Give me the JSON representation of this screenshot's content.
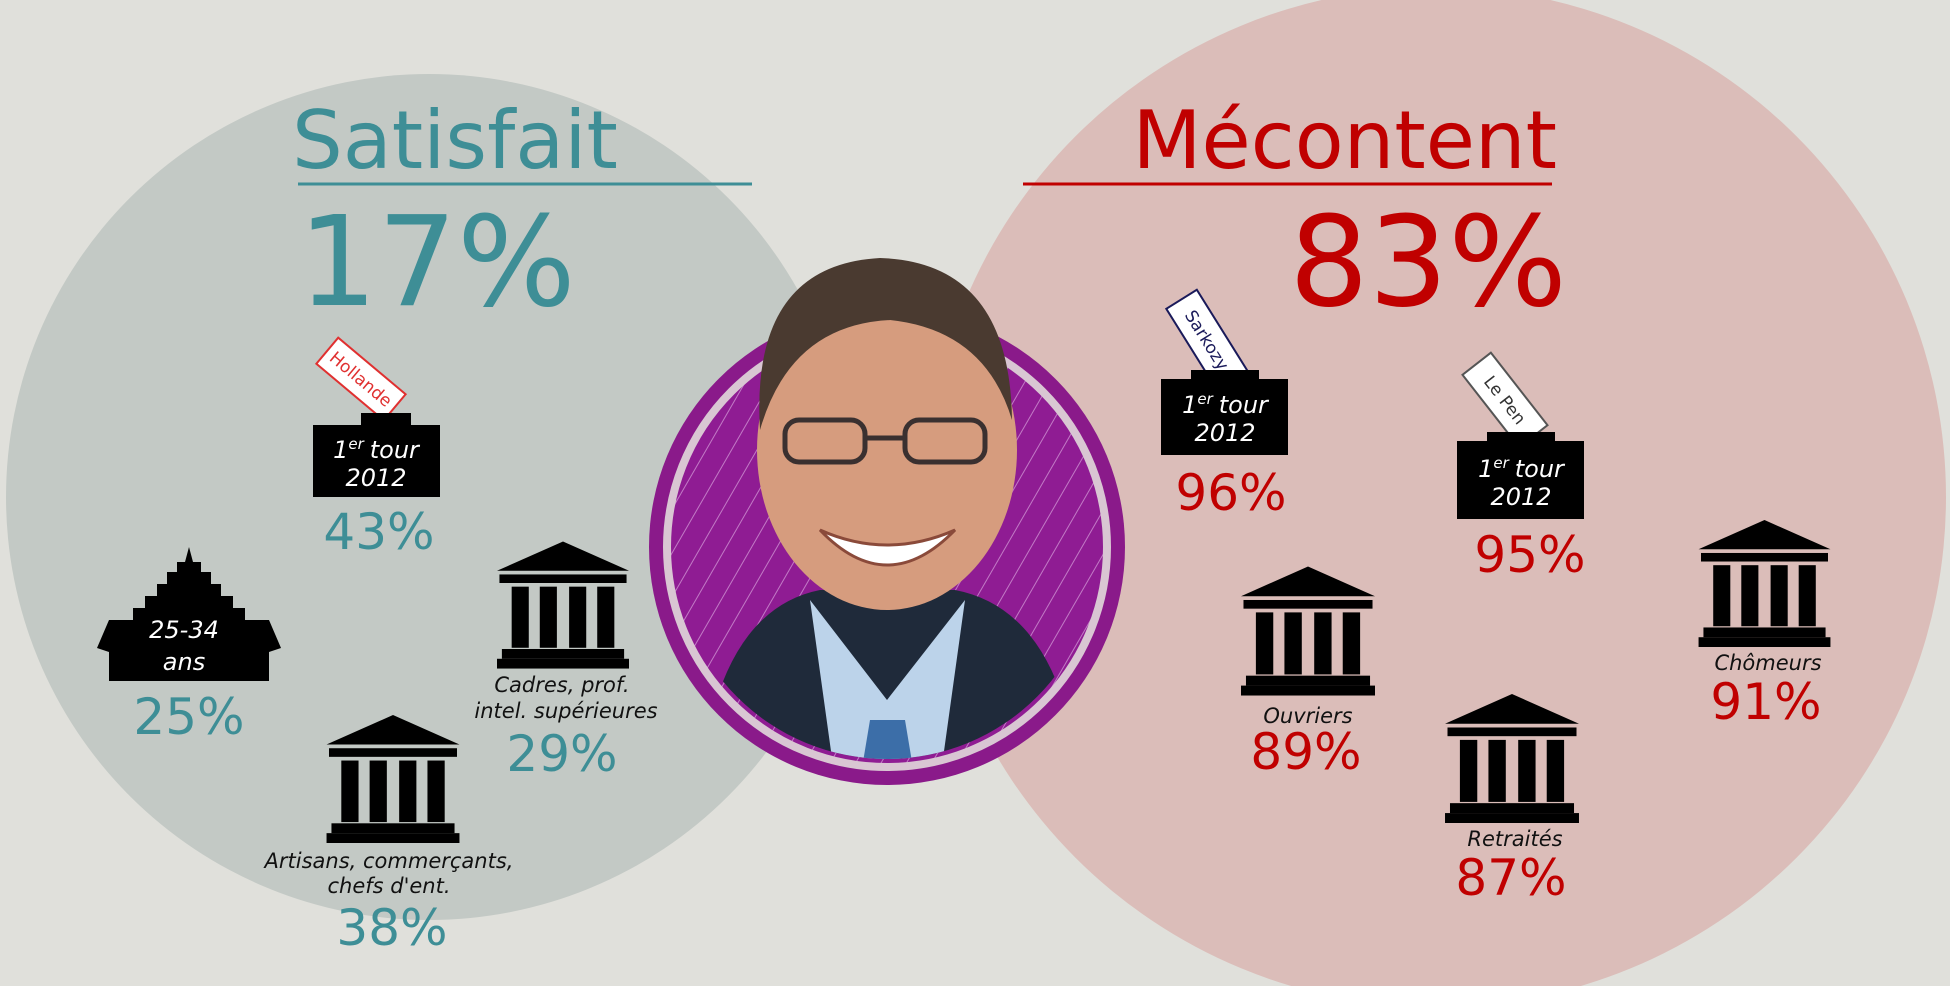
{
  "satisfait": {
    "title": "Satisfait",
    "total": "17%",
    "vote": {
      "ballot": "Hollande",
      "urn": {
        "num": "1",
        "sup": "er",
        "word": "tour",
        "year": "2012"
      },
      "value": "43%"
    },
    "age": {
      "lines": [
        "25-34",
        "ans"
      ],
      "value": "25%"
    },
    "cadres": {
      "lines": [
        "Cadres, prof.",
        "intel. supérieures"
      ],
      "value": "29%"
    },
    "artisans": {
      "lines": [
        "Artisans, commerçants,",
        "chefs d'ent."
      ],
      "value": "38%"
    }
  },
  "mecontent": {
    "title": "Mécontent",
    "total": "83%",
    "sarkozy": {
      "ballot": "Sarkozy",
      "urn": {
        "num": "1",
        "sup": "er",
        "word": "tour",
        "year": "2012"
      },
      "value": "96%"
    },
    "lepen": {
      "ballot": "Le Pen",
      "urn": {
        "num": "1",
        "sup": "er",
        "word": "tour",
        "year": "2012"
      },
      "value": "95%"
    },
    "ouvriers": {
      "lines": [
        "Ouvriers"
      ],
      "value": "89%"
    },
    "retraites": {
      "lines": [
        "Retraités"
      ],
      "value": "87%"
    },
    "chomeurs": {
      "lines": [
        "Chômeurs"
      ],
      "value": "91%"
    }
  }
}
